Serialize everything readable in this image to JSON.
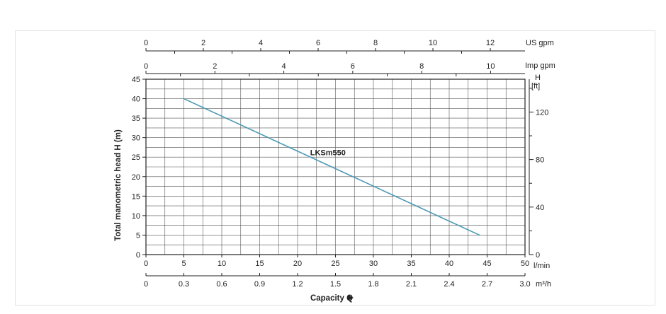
{
  "chart_data": {
    "type": "line",
    "title": "",
    "ylabel": "Total manometric head H (m)",
    "xlabel": "Capacity Q",
    "x_unit": "l/min",
    "xlim": [
      0,
      50
    ],
    "ylim": [
      0,
      45
    ],
    "grid": true,
    "series": [
      {
        "name": "LKSm550",
        "color": "#4a98b4",
        "x": [
          5,
          44
        ],
        "y": [
          40,
          5
        ]
      }
    ],
    "x_ticks": [
      0,
      5,
      10,
      15,
      20,
      25,
      30,
      35,
      40,
      45,
      50
    ],
    "y_ticks": [
      0,
      5,
      10,
      15,
      20,
      25,
      30,
      35,
      40,
      45
    ],
    "secondary_axes": {
      "us_gpm": {
        "label": "US gpm",
        "ticks": [
          0,
          2,
          4,
          6,
          8,
          10,
          12
        ],
        "minor_ticks": [
          1,
          3,
          5,
          7,
          9,
          11
        ]
      },
      "imp_gpm": {
        "label": "Imp gpm",
        "ticks": [
          0,
          2,
          4,
          6,
          8,
          10
        ],
        "minor_ticks": [
          1,
          3,
          5,
          7,
          9
        ]
      },
      "feet": {
        "label": "H",
        "unit": "[ft]",
        "ticks": [
          0,
          40,
          80,
          120
        ],
        "minor_ticks": [
          20,
          60,
          100,
          140
        ]
      },
      "m3h": {
        "label": "m³/h",
        "ticks": [
          "0",
          "0.3",
          "0.6",
          "0.9",
          "1.2",
          "1.5",
          "1.8",
          "2.1",
          "2.4",
          "2.7",
          "3.0"
        ]
      }
    }
  }
}
